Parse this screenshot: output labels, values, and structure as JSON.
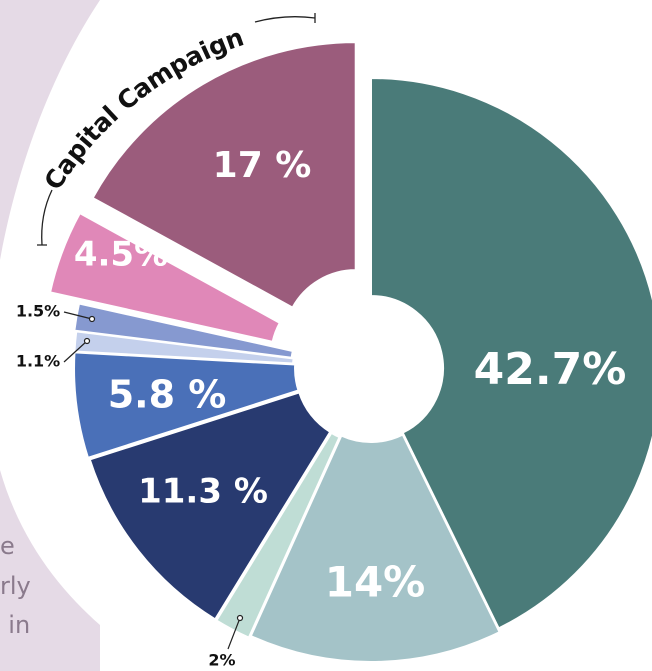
{
  "chart_data": {
    "type": "pie",
    "donut": true,
    "annotation": "Capital Campaign",
    "categories": [
      null,
      null,
      null,
      null,
      null,
      null,
      null,
      null,
      null
    ],
    "values": [
      42.7,
      14,
      2,
      11.3,
      5.8,
      1.1,
      1.5,
      4.5,
      17
    ],
    "value_labels": [
      "42.7%",
      "14%",
      "2%",
      "11.3 %",
      "5.8 %",
      "1.1%",
      "1.5%",
      "4.5%",
      "17 %"
    ],
    "colors": [
      "#4a7b79",
      "#a4c3c8",
      "#bfddd5",
      "#283a70",
      "#4a70b8",
      "#c4d0ec",
      "#8699d0",
      "#e088b8",
      "#9b5c7c"
    ],
    "side_text": [
      "e",
      "rly",
      "l in"
    ]
  }
}
